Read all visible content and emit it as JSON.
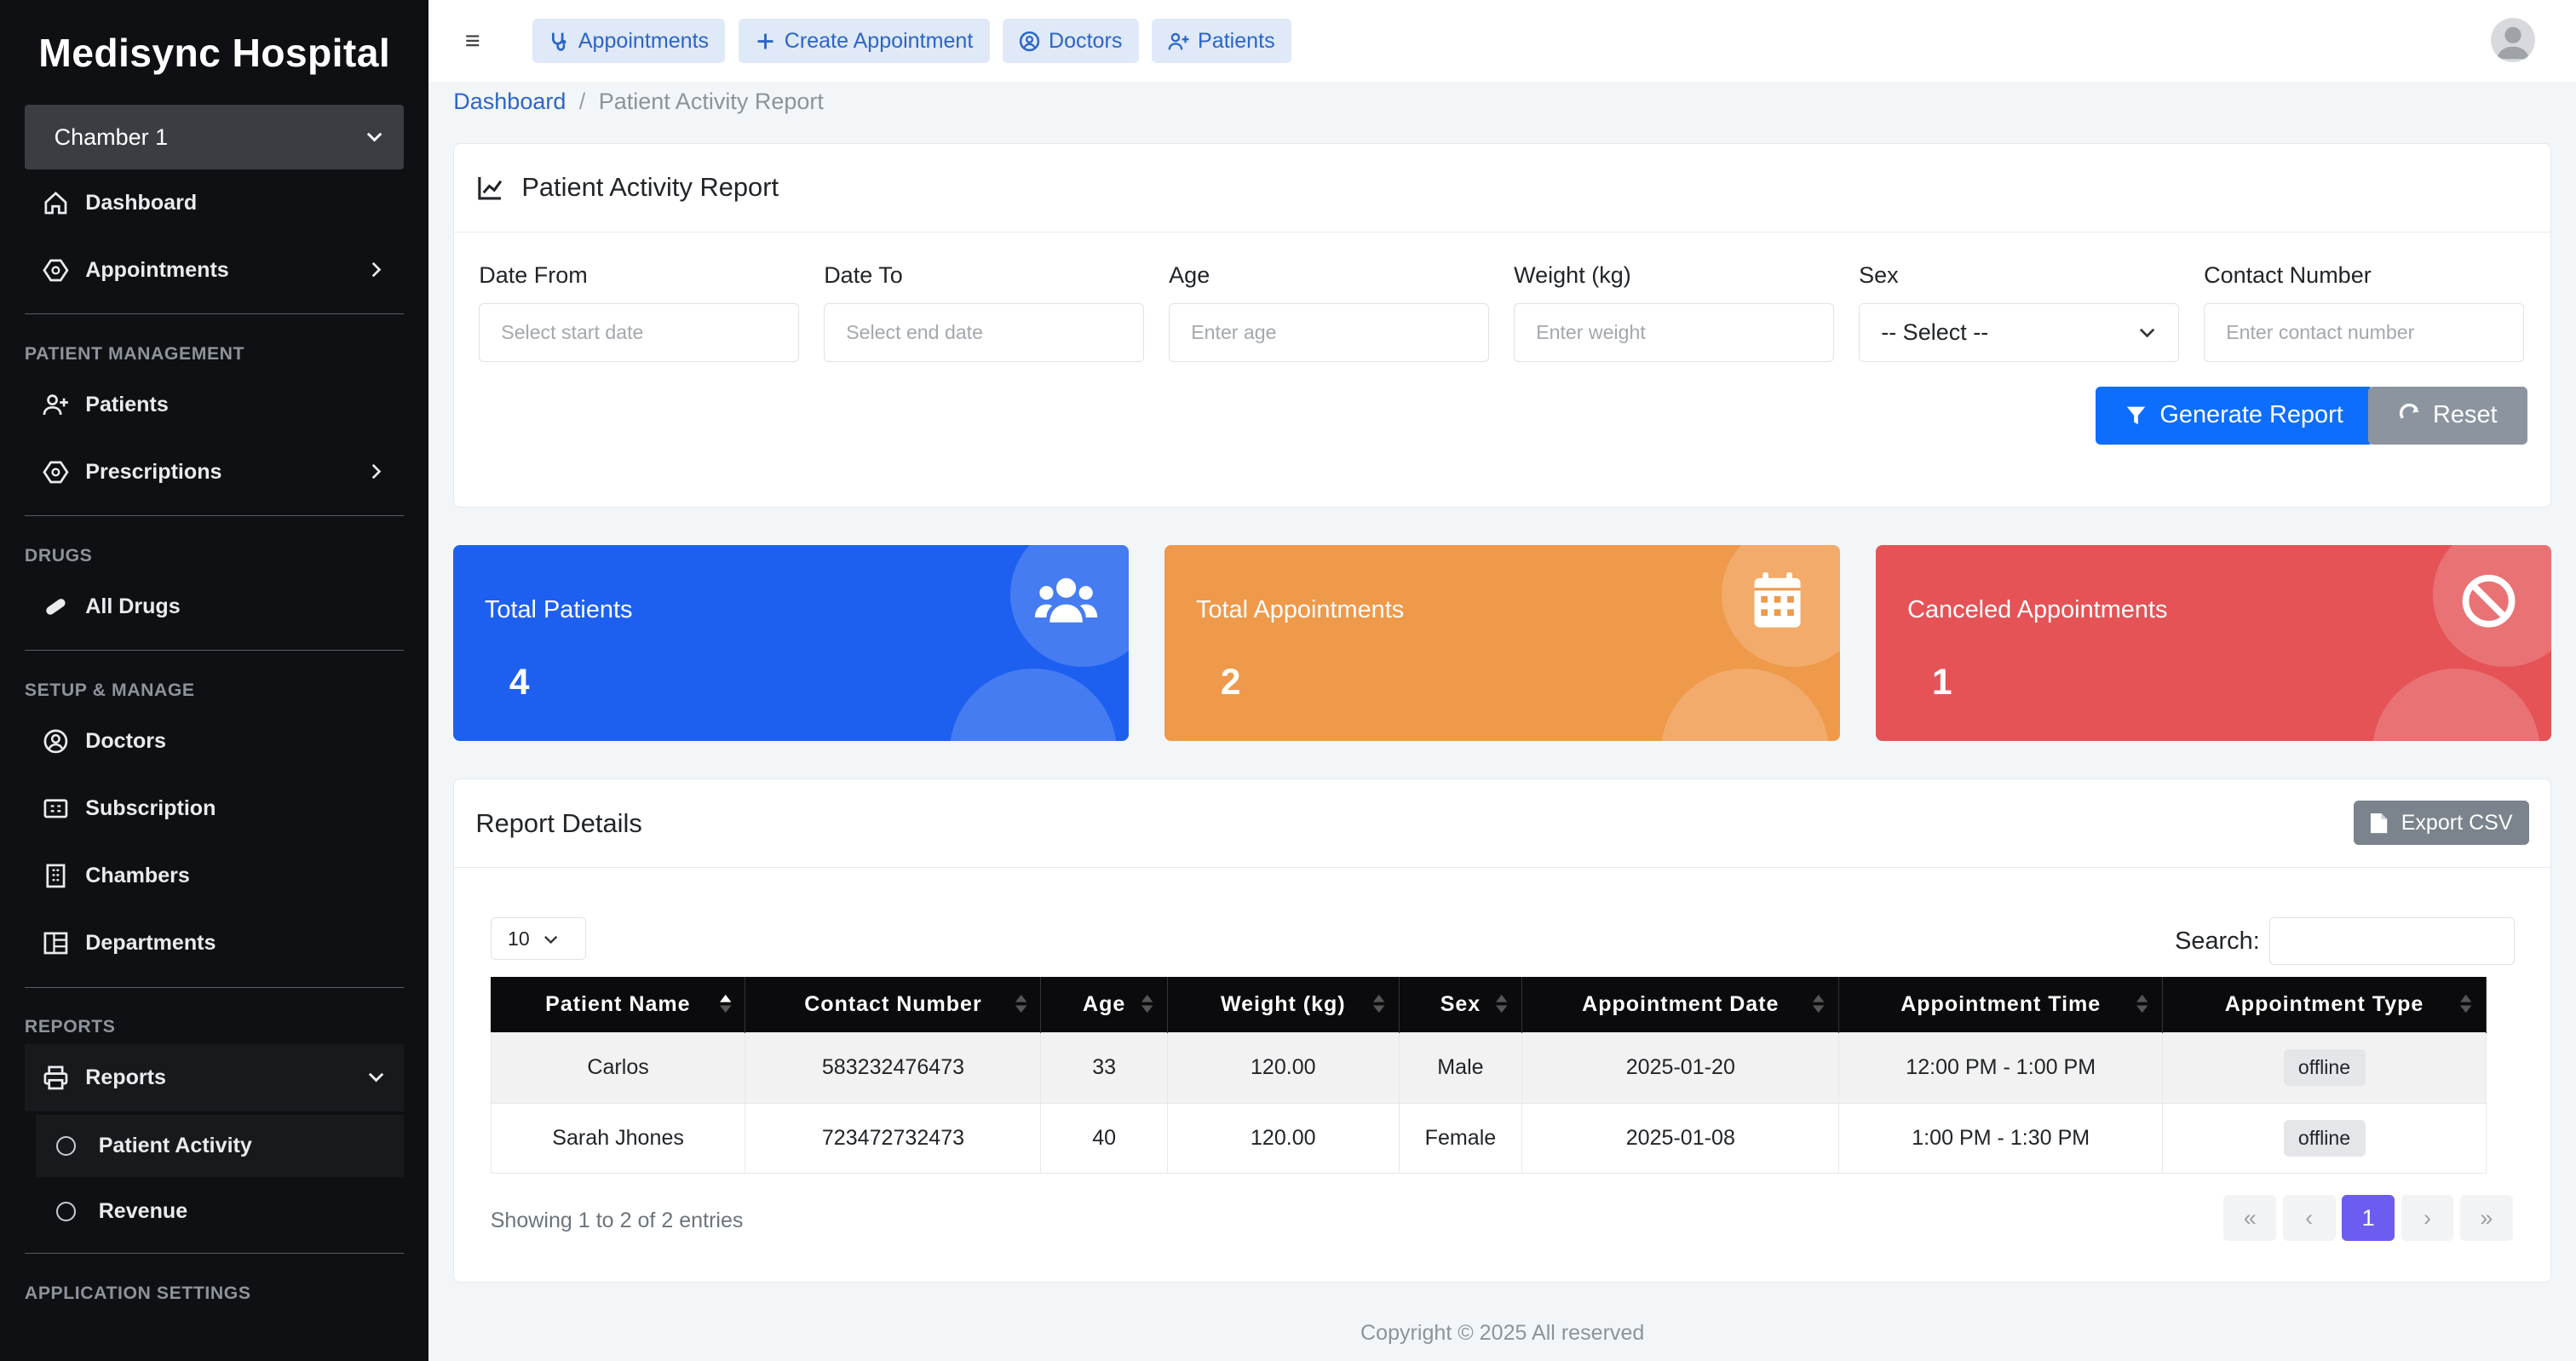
{
  "sidebar": {
    "brand": "Medisync Hospital",
    "chamber": "Chamber 1",
    "dashboard": "Dashboard",
    "appointments": "Appointments",
    "section_patient": "Patient Management",
    "patients": "Patients",
    "prescriptions": "Prescriptions",
    "section_drugs": "Drugs",
    "all_drugs": "All Drugs",
    "section_setup": "Setup & Manage",
    "doctors": "Doctors",
    "subscription": "Subscription",
    "chambers": "Chambers",
    "departments": "Departments",
    "section_reports": "Reports",
    "reports": "Reports",
    "patient_activity": "Patient Activity",
    "revenue": "Revenue",
    "section_app_settings": "Application Settings"
  },
  "topbar": {
    "quick": [
      "Appointments",
      "Create Appointment",
      "Doctors",
      "Patients"
    ]
  },
  "breadcrumb": {
    "home": "Dashboard",
    "sep": "/",
    "current": "Patient Activity Report"
  },
  "filter": {
    "title": "Patient Activity Report",
    "date_from_label": "Date From",
    "date_from_ph": "Select start date",
    "date_to_label": "Date To",
    "date_to_ph": "Select end date",
    "age_label": "Age",
    "age_ph": "Enter age",
    "weight_label": "Weight (kg)",
    "weight_ph": "Enter weight",
    "sex_label": "Sex",
    "sex_value": "-- Select --",
    "contact_label": "Contact Number",
    "contact_ph": "Enter contact number",
    "generate": "Generate Report",
    "reset": "Reset"
  },
  "stats": [
    {
      "label": "Total Patients",
      "value": "4",
      "color": "#1d60f0",
      "icon": "users-icon"
    },
    {
      "label": "Total Appointments",
      "value": "2",
      "color": "#ef994a",
      "icon": "calendar-icon"
    },
    {
      "label": "Canceled Appointments",
      "value": "1",
      "color": "#e55357",
      "icon": "ban-icon"
    }
  ],
  "report": {
    "title": "Report Details",
    "export": "Export CSV",
    "page_length": "10",
    "search_label": "Search:",
    "columns": [
      "Patient Name",
      "Contact Number",
      "Age",
      "Weight (kg)",
      "Sex",
      "Appointment Date",
      "Appointment Time",
      "Appointment Type"
    ],
    "rows": [
      [
        "Carlos",
        "583232476473",
        "33",
        "120.00",
        "Male",
        "2025-01-20",
        "12:00 PM - 1:00 PM",
        "offline"
      ],
      [
        "Sarah Jhones",
        "723472732473",
        "40",
        "120.00",
        "Female",
        "2025-01-08",
        "1:00 PM - 1:30 PM",
        "offline"
      ]
    ],
    "showing": "Showing 1 to 2 of 2 entries",
    "pager": [
      "«",
      "‹",
      "1",
      "›",
      "»"
    ]
  },
  "footer": "Copyright © 2025 All reserved"
}
